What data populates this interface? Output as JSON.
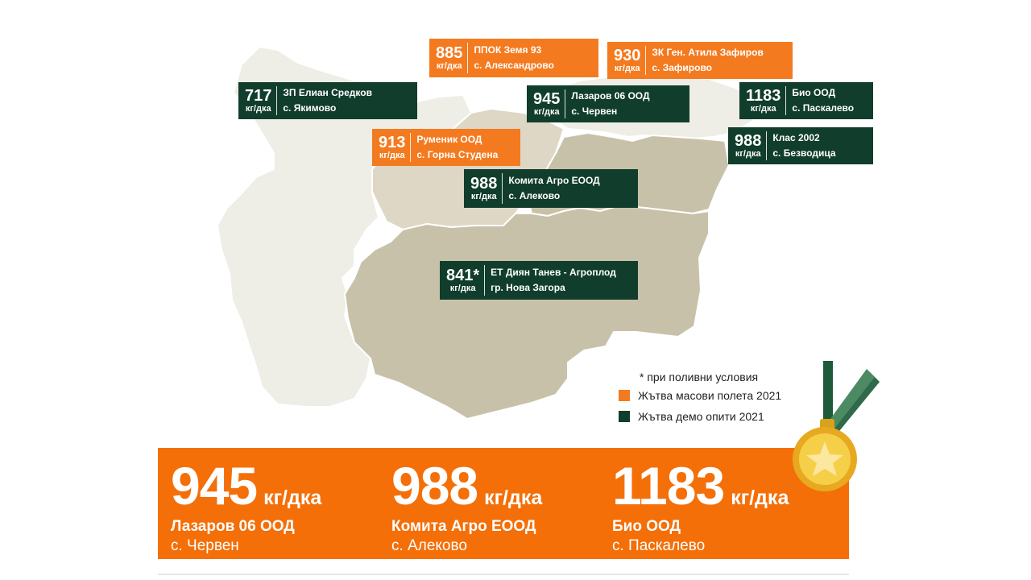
{
  "labels": [
    {
      "id": "aleksandrovo",
      "value": "885",
      "unit": "кг/дка",
      "name": "ППОК Земя 93",
      "place": "с. Александрово",
      "color": "#f47a1f"
    },
    {
      "id": "zafirovo",
      "value": "930",
      "unit": "кг/дка",
      "name": "ЗК Ген. Атила Зафиров",
      "place": "с. Зафирово",
      "color": "#f47a1f"
    },
    {
      "id": "yakimovo",
      "value": "717",
      "unit": "кг/дка",
      "name": "ЗП Елиан Средков",
      "place": "с. Якимово",
      "color": "#113d2c"
    },
    {
      "id": "cherven",
      "value": "945",
      "unit": "кг/дка",
      "name": "Лазаров 06 ООД",
      "place": "с. Червен",
      "color": "#113d2c"
    },
    {
      "id": "paskalevo",
      "value": "1183",
      "unit": "кг/дка",
      "name": "Био ООД",
      "place": "с. Паскалево",
      "color": "#113d2c"
    },
    {
      "id": "gorna-studena",
      "value": "913",
      "unit": "кг/дка",
      "name": "Руменик ООД",
      "place": "с. Горна Студена",
      "color": "#f47a1f"
    },
    {
      "id": "bezvoditsa",
      "value": "988",
      "unit": "кг/дка",
      "name": "Клас 2002",
      "place": "с. Безводица",
      "color": "#113d2c"
    },
    {
      "id": "alekovo",
      "value": "988",
      "unit": "кг/дка",
      "name": "Комита Агро ЕООД",
      "place": "с. Алеково",
      "color": "#113d2c"
    },
    {
      "id": "nova-zagora",
      "value": "841*",
      "unit": "кг/дка",
      "name": "ЕТ Диян Танев - Агроплод",
      "place": "гр. Нова Загора",
      "color": "#113d2c"
    }
  ],
  "legend": {
    "note": "* при поливни условия",
    "mass_label": "Жътва масови полета 2021",
    "demo_label": "Жътва демо опити 2021",
    "mass_color": "#f47a1f",
    "demo_color": "#113d2c"
  },
  "summary": [
    {
      "value": "945",
      "unit": "кг/дка",
      "name": "Лазаров 06 ООД",
      "place": "с. Червен"
    },
    {
      "value": "988",
      "unit": "кг/дка",
      "name": "Комита Агро ЕООД",
      "place": "с. Алеково"
    },
    {
      "value": "1183",
      "unit": "кг/дка",
      "name": "Био ООД",
      "place": "с. Паскалево"
    }
  ],
  "colors": {
    "region_light": "#eeede6",
    "region_mid": "#ded7c5",
    "region_dark": "#c8c1a9",
    "banner": "#f46f08",
    "medal_gold": "#f2c230",
    "ribbon": "#2f6a4a"
  }
}
